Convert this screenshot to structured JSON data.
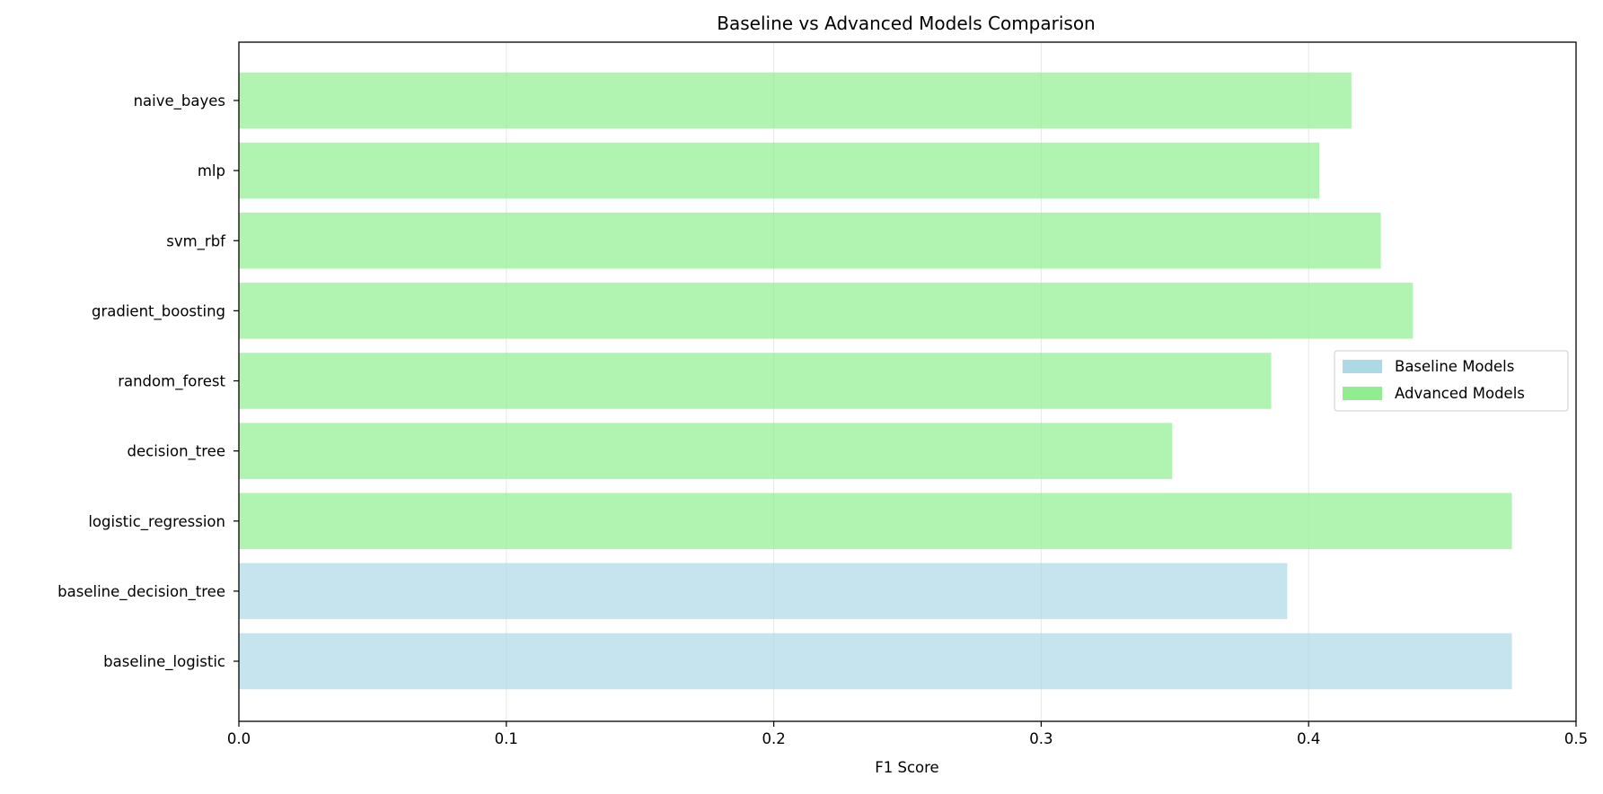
{
  "chart_data": {
    "type": "bar",
    "orientation": "horizontal",
    "title": "Baseline vs Advanced Models Comparison",
    "xlabel": "F1 Score",
    "ylabel": "",
    "xlim": [
      0,
      0.5
    ],
    "xticks": [
      "0.0",
      "0.1",
      "0.2",
      "0.3",
      "0.4",
      "0.5"
    ],
    "grid": "vertical",
    "legend_position": "center-right",
    "categories": [
      "baseline_logistic",
      "baseline_decision_tree",
      "logistic_regression",
      "decision_tree",
      "random_forest",
      "gradient_boosting",
      "svm_rbf",
      "mlp",
      "naive_bayes"
    ],
    "values": [
      0.476,
      0.392,
      0.476,
      0.349,
      0.386,
      0.439,
      0.427,
      0.404,
      0.416
    ],
    "groups": [
      "baseline",
      "baseline",
      "advanced",
      "advanced",
      "advanced",
      "advanced",
      "advanced",
      "advanced",
      "advanced"
    ],
    "series": [
      {
        "key": "baseline",
        "name": "Baseline Models",
        "color": "#add8e6"
      },
      {
        "key": "advanced",
        "name": "Advanced Models",
        "color": "#90ee90"
      }
    ]
  }
}
